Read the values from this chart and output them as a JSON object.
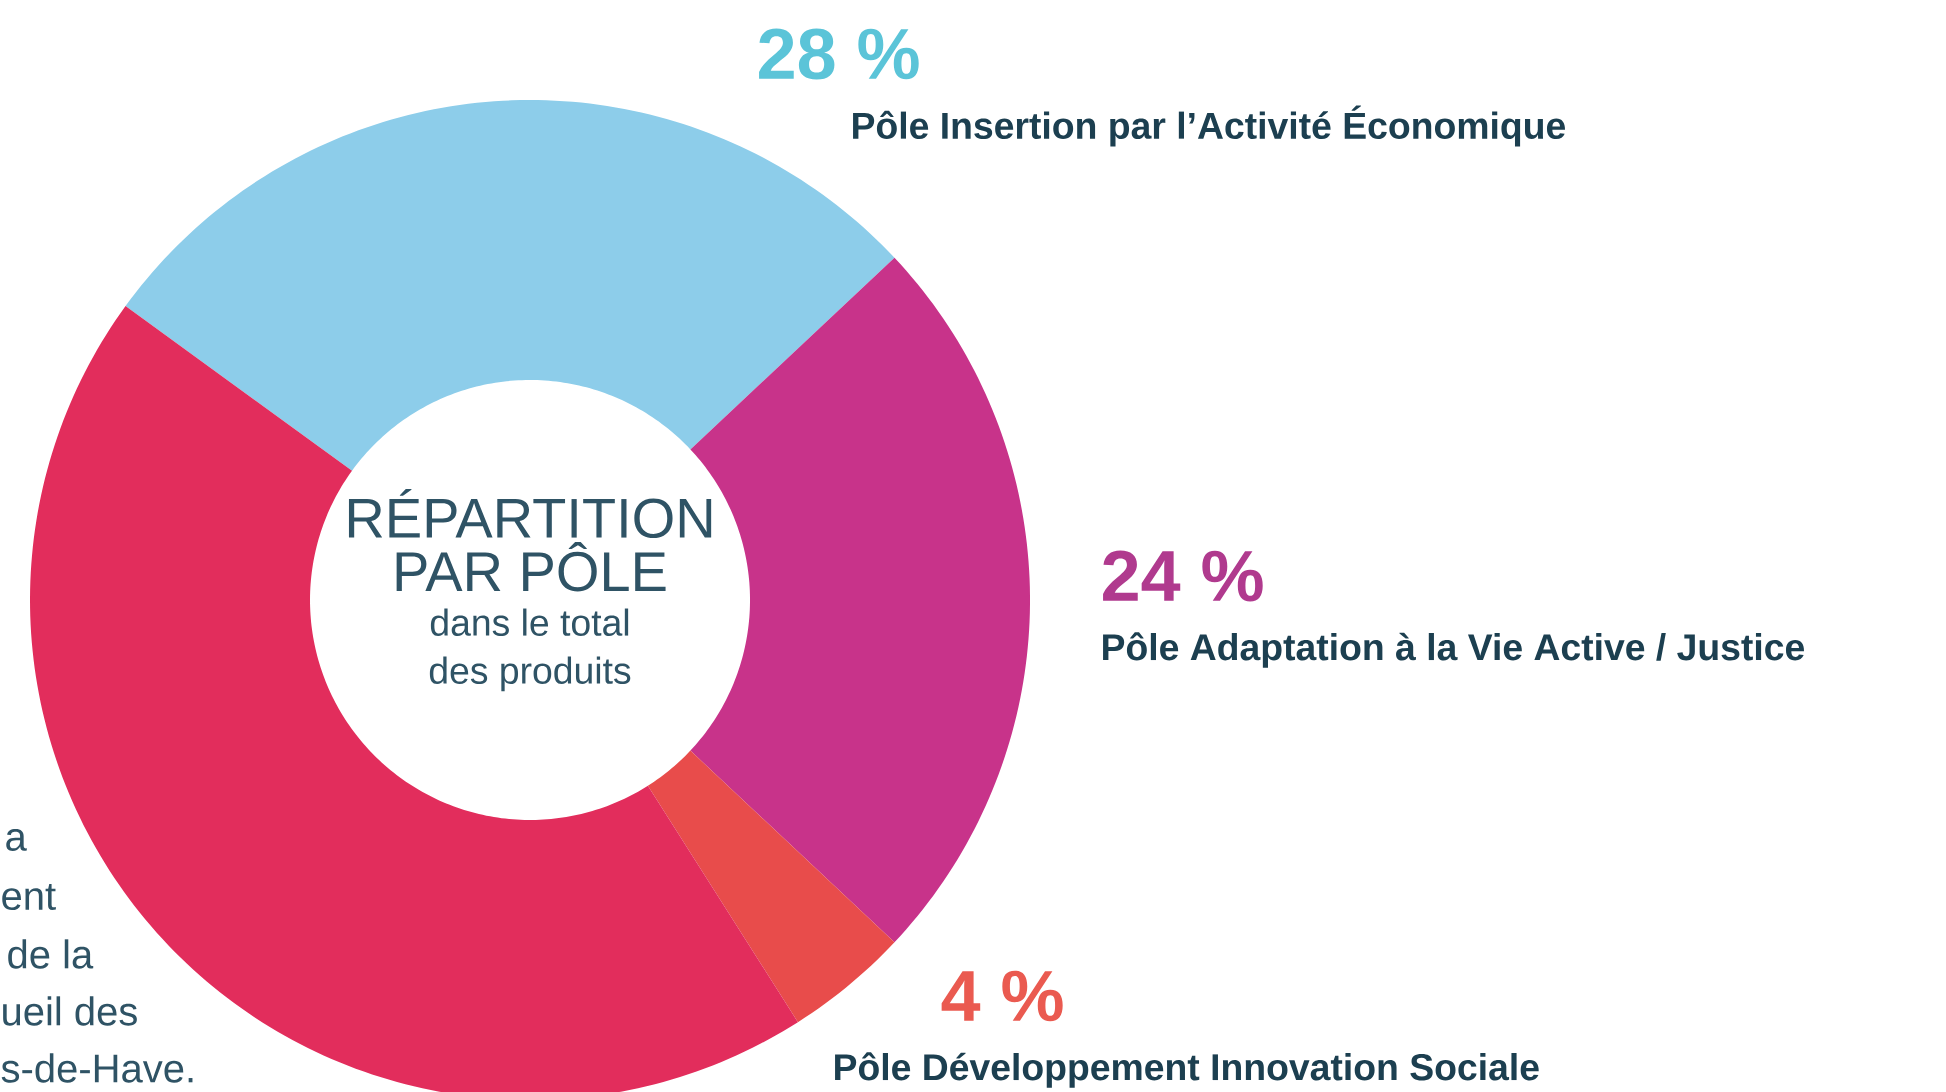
{
  "chart_data": {
    "type": "donut",
    "title": "RÉPARTITION PAR PÔLE",
    "subtitle": "dans le total des produits",
    "categories": [
      "Pôle Insertion par l’Activité Économique",
      "Pôle Adaptation à la Vie Active / Justice",
      "Pôle Développement Innovation Sociale",
      null
    ],
    "values": [
      28,
      24,
      4,
      44
    ],
    "colors": [
      "#8dcdea",
      "#c8338a",
      "#e84c4b",
      "#e22d5c"
    ],
    "value_labels": [
      "28 %",
      "24 %",
      "4 %",
      null
    ],
    "annotations": [
      "a",
      "ent",
      "de la",
      "ueil des",
      "s-de-Have."
    ]
  }
}
